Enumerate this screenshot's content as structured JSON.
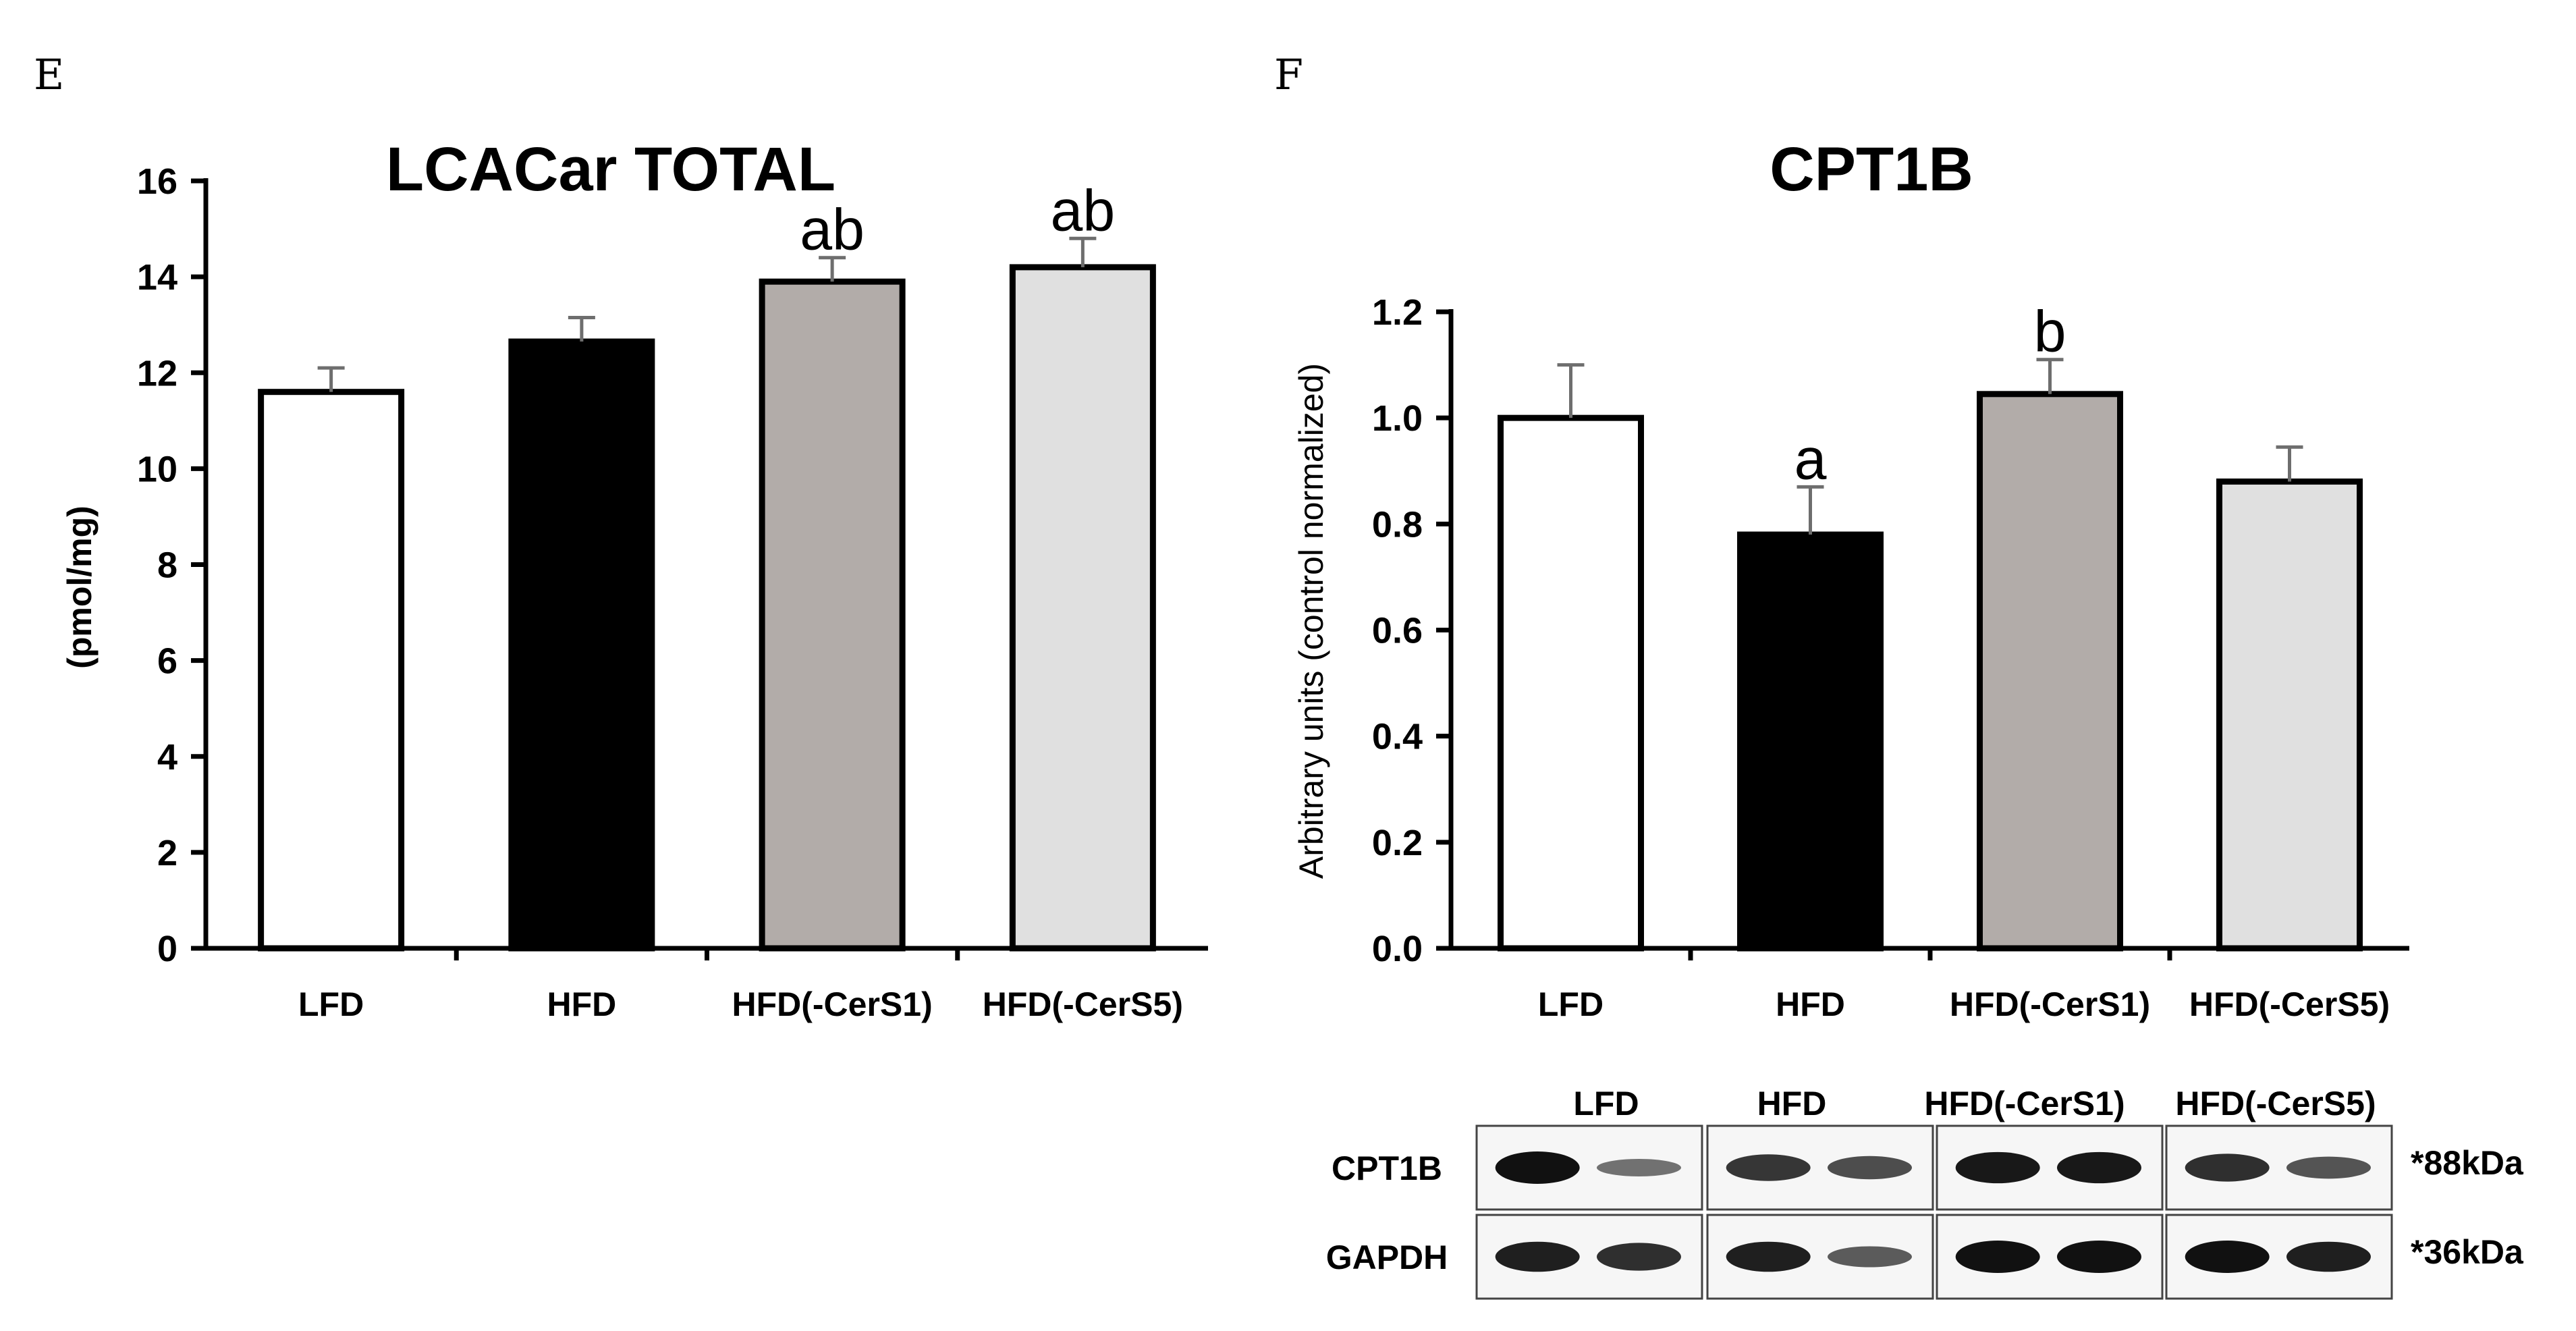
{
  "panels": {
    "E": {
      "letter": "E"
    },
    "F": {
      "letter": "F"
    }
  },
  "chart_data": [
    {
      "type": "bar",
      "title": "LCACar TOTAL",
      "ylabel": "(pmol/mg)",
      "xlabel": "",
      "categories": [
        "LFD",
        "HFD",
        "HFD(-CerS1)",
        "HFD(-CerS5)"
      ],
      "values": [
        11.6,
        12.65,
        13.9,
        14.2
      ],
      "errors": [
        0.5,
        0.5,
        0.5,
        0.6
      ],
      "significance": [
        "",
        "",
        "ab",
        "ab"
      ],
      "fill_colors": [
        "#ffffff",
        "#000000",
        "#b2aca9",
        "#e0e0e0"
      ],
      "ylim": [
        0,
        16
      ],
      "yticks": [
        "0",
        "2",
        "4",
        "6",
        "8",
        "10",
        "12",
        "14",
        "16"
      ],
      "grid": false
    },
    {
      "type": "bar",
      "title": "CPT1B",
      "ylabel": "Arbitrary units (control normalized)",
      "xlabel": "",
      "categories": [
        "LFD",
        "HFD",
        "HFD(-CerS1)",
        "HFD(-CerS5)"
      ],
      "values": [
        1.0,
        0.78,
        1.045,
        0.88
      ],
      "errors": [
        0.1,
        0.09,
        0.065,
        0.065
      ],
      "significance": [
        "",
        "a",
        "b",
        ""
      ],
      "fill_colors": [
        "#ffffff",
        "#000000",
        "#b2aca9",
        "#e0e0e0"
      ],
      "ylim": [
        0,
        1.2
      ],
      "yticks": [
        "0.0",
        "0.2",
        "0.4",
        "0.6",
        "0.8",
        "1.0",
        "1.2"
      ],
      "grid": false
    }
  ],
  "blot": {
    "groups": [
      "LFD",
      "HFD",
      "HFD(-CerS1)",
      "HFD(-CerS5)"
    ],
    "rows": [
      {
        "label": "CPT1B",
        "size": "*88kDa",
        "intensity": [
          1.0,
          0.35,
          0.75,
          0.6,
          0.95,
          0.95,
          0.8,
          0.55
        ]
      },
      {
        "label": "GAPDH",
        "size": "*36kDa",
        "intensity": [
          0.9,
          0.8,
          0.9,
          0.5,
          1.0,
          1.0,
          1.0,
          0.9
        ]
      }
    ]
  }
}
